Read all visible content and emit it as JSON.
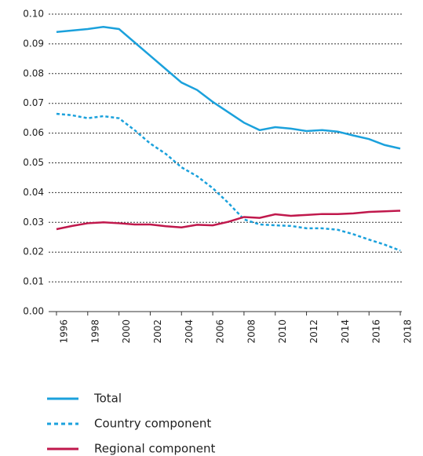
{
  "chart_data": {
    "type": "line",
    "x": [
      1996,
      1997,
      1998,
      1999,
      2000,
      2001,
      2002,
      2003,
      2004,
      2005,
      2006,
      2007,
      2008,
      2009,
      2010,
      2011,
      2012,
      2013,
      2014,
      2015,
      2016,
      2017,
      2018
    ],
    "series": [
      {
        "name": "Total",
        "color": "#1ba1dc",
        "dash": false,
        "values": [
          0.094,
          0.0945,
          0.095,
          0.0957,
          0.095,
          0.0905,
          0.086,
          0.0815,
          0.077,
          0.0745,
          0.0705,
          0.067,
          0.0635,
          0.061,
          0.062,
          0.0615,
          0.0607,
          0.061,
          0.0605,
          0.0592,
          0.058,
          0.056,
          0.0548
        ]
      },
      {
        "name": "Country component",
        "color": "#1ba1dc",
        "dash": true,
        "values": [
          0.0665,
          0.066,
          0.065,
          0.0657,
          0.065,
          0.061,
          0.0565,
          0.053,
          0.0485,
          0.0455,
          0.0415,
          0.0365,
          0.031,
          0.0293,
          0.029,
          0.0288,
          0.028,
          0.028,
          0.0275,
          0.026,
          0.0242,
          0.0225,
          0.0205
        ]
      },
      {
        "name": "Regional component",
        "color": "#c0184c",
        "dash": false,
        "values": [
          0.0277,
          0.0288,
          0.0297,
          0.03,
          0.0297,
          0.0293,
          0.0293,
          0.0287,
          0.0283,
          0.0292,
          0.029,
          0.0302,
          0.0318,
          0.0315,
          0.0327,
          0.0322,
          0.0325,
          0.0328,
          0.0328,
          0.033,
          0.0335,
          0.0337,
          0.0339
        ]
      }
    ],
    "xlim": [
      1995.5,
      2018.5
    ],
    "xticks": [
      1996,
      1998,
      2000,
      2002,
      2004,
      2006,
      2008,
      2010,
      2012,
      2014,
      2016,
      2018
    ],
    "ylim": [
      0,
      0.1
    ],
    "yticks": [
      {
        "value": 0,
        "label": "0.00"
      },
      0.01,
      0.02,
      0.03,
      0.04,
      0.05,
      0.06,
      0.07,
      0.08,
      0.09,
      {
        "value": 0.1,
        "label": "0.10"
      }
    ],
    "grid": true
  }
}
